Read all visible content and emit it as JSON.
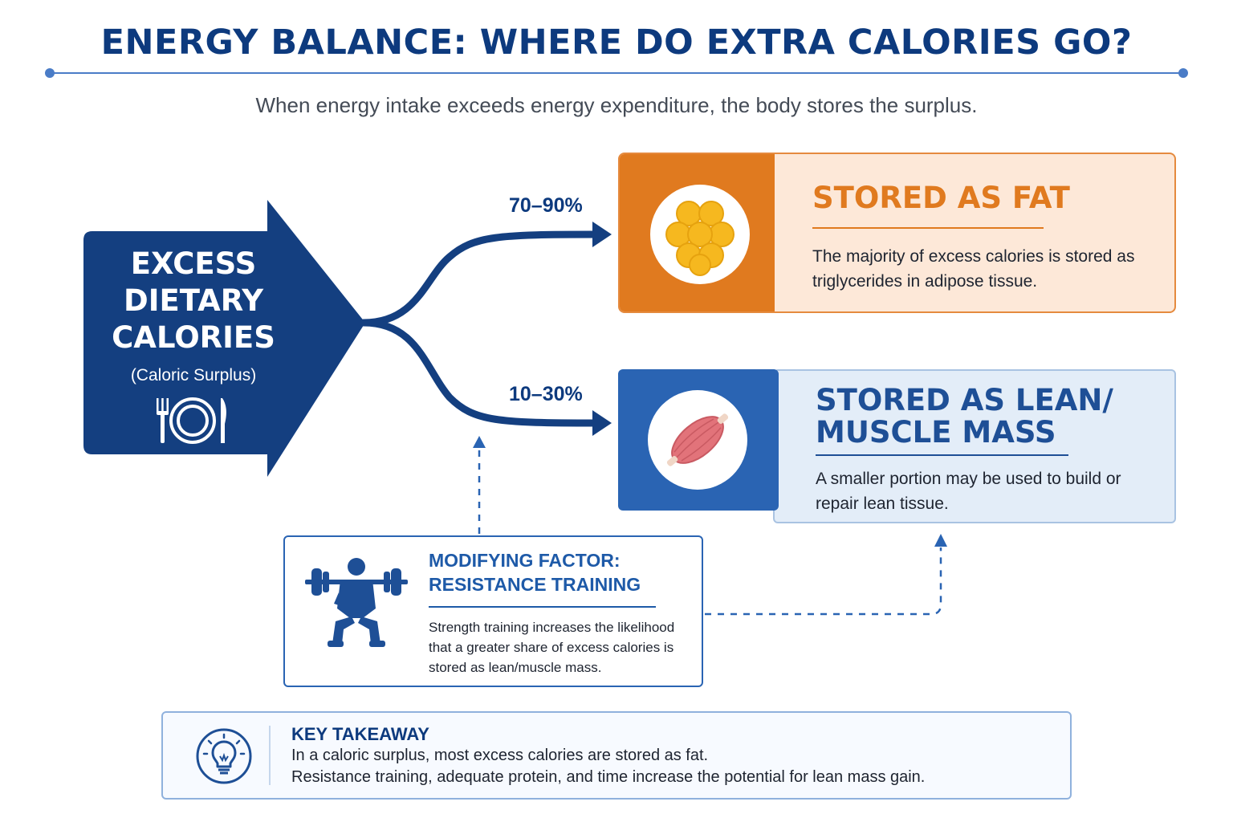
{
  "title": "ENERGY BALANCE: WHERE DO EXTRA CALORIES GO?",
  "subtitle": "When energy intake exceeds energy expenditure, the body stores the surplus.",
  "source": {
    "lines": [
      "EXCESS",
      "DIETARY",
      "CALORIES"
    ],
    "sub": "(Caloric Surplus)",
    "icon": "plate-utensils-icon"
  },
  "branches": [
    {
      "percent": "70–90%",
      "target": "fat"
    },
    {
      "percent": "10–30%",
      "target": "lean"
    }
  ],
  "fat": {
    "title": "STORED AS FAT",
    "description": "The majority of excess calories is stored as triglycerides in adipose tissue.",
    "icon": "fat-cells-icon",
    "color": "#e07a1f"
  },
  "lean": {
    "title_line1": "STORED AS LEAN/",
    "title_line2": "MUSCLE MASS",
    "description": "A smaller portion may be used to build or repair lean tissue.",
    "icon": "muscle-icon",
    "color": "#1e4f96"
  },
  "modifier": {
    "title_line1": "MODIFYING FACTOR:",
    "title_line2": "RESISTANCE TRAINING",
    "description": "Strength training increases the likelihood that a greater share of excess calories is stored as lean/muscle mass.",
    "icon": "weightlifter-icon"
  },
  "takeaway": {
    "title": "KEY TAKEAWAY",
    "line1": "In a caloric surplus, most excess calories are stored as fat.",
    "line2": "Resistance training, adequate protein, and time increase the potential for lean mass gain.",
    "icon": "lightbulb-icon"
  },
  "colors": {
    "navy": "#0d3a7e",
    "blue": "#2a64b3",
    "orange": "#e07a1f"
  }
}
